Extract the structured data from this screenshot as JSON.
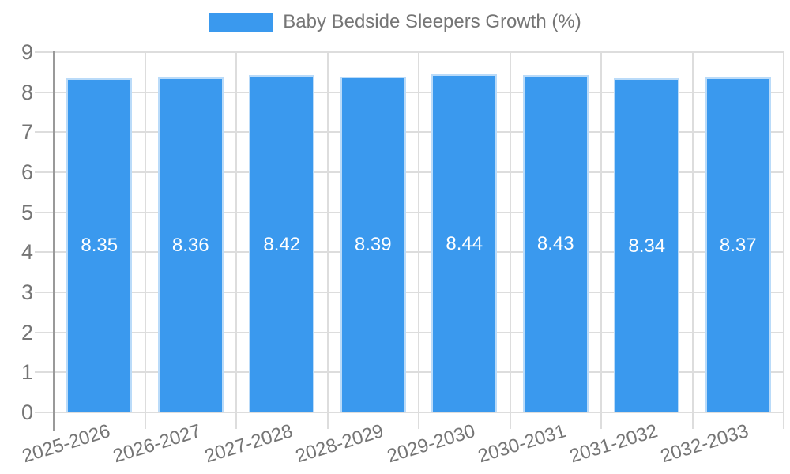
{
  "legend": {
    "label": "Baby Bedside Sleepers Growth (%)"
  },
  "colors": {
    "bar": "#3A99EE",
    "grid": "#DDDDDD",
    "axis": "#999999",
    "text": "#757575",
    "value_label": "#FFFFFF",
    "background": "#FFFFFF"
  },
  "chart_data": {
    "type": "bar",
    "title": "Baby Bedside Sleepers Growth (%)",
    "series": [
      {
        "name": "Baby Bedside Sleepers Growth (%)",
        "values": [
          8.35,
          8.36,
          8.42,
          8.39,
          8.44,
          8.43,
          8.34,
          8.37
        ]
      }
    ],
    "categories": [
      "2025-2026",
      "2026-2027",
      "2027-2028",
      "2028-2029",
      "2029-2030",
      "2030-2031",
      "2031-2032",
      "2032-2033"
    ],
    "value_labels": [
      "8.35",
      "8.36",
      "8.42",
      "8.39",
      "8.44",
      "8.43",
      "8.34",
      "8.37"
    ],
    "xlabel": "",
    "ylabel": "",
    "ylim": [
      0,
      9
    ],
    "yticks": [
      0,
      1,
      2,
      3,
      4,
      5,
      6,
      7,
      8,
      9
    ],
    "grid": true,
    "legend_position": "top-center",
    "value_labels_position": "inside-center",
    "xtick_rotation_deg": -17
  }
}
